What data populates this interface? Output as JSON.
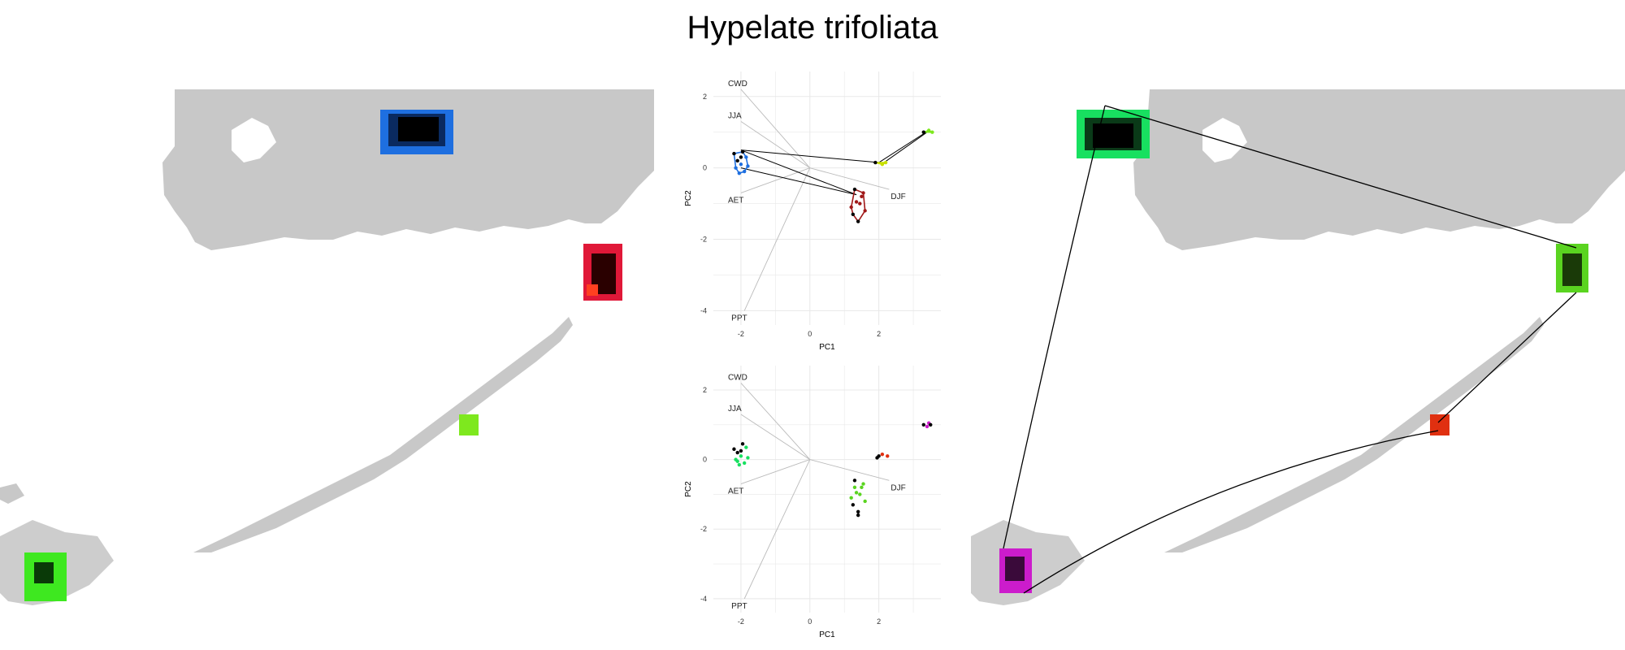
{
  "title": "Hypelate trifoliata",
  "colors": {
    "land": "#c8c8c8",
    "grid": "#e8e8e8",
    "vector": "#bbbbbb",
    "blue": "#1e6fe0",
    "red": "#e01838",
    "lime": "#7ee81e",
    "green": "#18e060",
    "magenta": "#cc1ccc",
    "orange_red": "#e03010"
  },
  "chart_data": [
    {
      "type": "scatter",
      "panel": "pca-top",
      "xlabel": "PC1",
      "ylabel": "PC2",
      "xlim": [
        -2.8,
        3.8
      ],
      "ylim": [
        -4.4,
        2.7
      ],
      "xticks": [
        -2,
        0,
        2
      ],
      "yticks": [
        -4,
        -2,
        0,
        2
      ],
      "grid": true,
      "loadings": [
        {
          "label": "CWD",
          "x": -2.0,
          "y": 2.2
        },
        {
          "label": "JJA",
          "x": -2.0,
          "y": 1.3
        },
        {
          "label": "AET",
          "x": -2.0,
          "y": -0.7
        },
        {
          "label": "DJF",
          "x": 2.3,
          "y": -0.6
        },
        {
          "label": "PPT",
          "x": -1.9,
          "y": -4.0
        }
      ],
      "series": [
        {
          "color": "#1e6fe0",
          "hull": true,
          "points": [
            [
              -2.2,
              0.4
            ],
            [
              -2.0,
              0.1
            ],
            [
              -1.9,
              -0.1
            ],
            [
              -2.1,
              0.2
            ],
            [
              -1.85,
              0.3
            ],
            [
              -2.05,
              -0.15
            ],
            [
              -1.95,
              0.45
            ],
            [
              -2.15,
              0.0
            ],
            [
              -1.8,
              0.05
            ],
            [
              -2.0,
              0.3
            ]
          ]
        },
        {
          "color": "#a01818",
          "hull": true,
          "points": [
            [
              1.3,
              -0.6
            ],
            [
              1.5,
              -0.8
            ],
            [
              1.2,
              -1.1
            ],
            [
              1.4,
              -1.5
            ],
            [
              1.6,
              -1.2
            ],
            [
              1.35,
              -0.95
            ],
            [
              1.25,
              -1.3
            ],
            [
              1.45,
              -1.0
            ],
            [
              1.55,
              -0.7
            ]
          ]
        },
        {
          "color": "#c8e000",
          "hull": true,
          "points": [
            [
              1.9,
              0.15
            ],
            [
              2.1,
              0.1
            ],
            [
              2.2,
              0.15
            ]
          ]
        },
        {
          "color": "#7ee81e",
          "hull": true,
          "points": [
            [
              3.3,
              1.0
            ],
            [
              3.45,
              1.05
            ],
            [
              3.55,
              1.0
            ]
          ]
        }
      ],
      "connections": [
        [
          [
            -2.0,
            0.5
          ],
          [
            2.0,
            0.15
          ]
        ],
        [
          [
            -2.0,
            0.5
          ],
          [
            1.35,
            -0.75
          ]
        ],
        [
          [
            -2.0,
            0.0
          ],
          [
            1.35,
            -0.75
          ]
        ],
        [
          [
            2.0,
            0.15
          ],
          [
            3.45,
            1.05
          ]
        ],
        [
          [
            2.15,
            0.15
          ],
          [
            3.4,
            1.0
          ]
        ]
      ]
    },
    {
      "type": "scatter",
      "panel": "pca-bottom",
      "xlabel": "PC1",
      "ylabel": "PC2",
      "xlim": [
        -2.8,
        3.8
      ],
      "ylim": [
        -4.4,
        2.7
      ],
      "xticks": [
        -2,
        0,
        2
      ],
      "yticks": [
        -4,
        -2,
        0,
        2
      ],
      "grid": true,
      "loadings": [
        {
          "label": "CWD",
          "x": -2.0,
          "y": 2.2
        },
        {
          "label": "JJA",
          "x": -2.0,
          "y": 1.3
        },
        {
          "label": "AET",
          "x": -2.0,
          "y": -0.7
        },
        {
          "label": "DJF",
          "x": 2.3,
          "y": -0.6
        },
        {
          "label": "PPT",
          "x": -1.9,
          "y": -4.0
        }
      ],
      "series": [
        {
          "color": "#18e060",
          "hull": false,
          "points": [
            [
              -2.2,
              0.3
            ],
            [
              -2.0,
              0.1
            ],
            [
              -1.9,
              -0.1
            ],
            [
              -2.1,
              0.2
            ],
            [
              -1.85,
              0.35
            ],
            [
              -2.05,
              -0.15
            ],
            [
              -1.95,
              0.45
            ],
            [
              -2.15,
              0.0
            ],
            [
              -1.8,
              0.05
            ],
            [
              -2.0,
              0.25
            ],
            [
              -2.1,
              -0.05
            ]
          ]
        },
        {
          "color": "#5ad420",
          "hull": false,
          "points": [
            [
              1.3,
              -0.6
            ],
            [
              1.5,
              -0.8
            ],
            [
              1.2,
              -1.1
            ],
            [
              1.4,
              -1.5
            ],
            [
              1.6,
              -1.2
            ],
            [
              1.35,
              -0.95
            ],
            [
              1.25,
              -1.3
            ],
            [
              1.45,
              -1.0
            ],
            [
              1.55,
              -0.7
            ],
            [
              1.4,
              -1.6
            ],
            [
              1.3,
              -0.8
            ]
          ]
        },
        {
          "color": "#e03010",
          "hull": false,
          "points": [
            [
              2.0,
              0.1
            ],
            [
              2.1,
              0.15
            ],
            [
              2.25,
              0.1
            ],
            [
              1.95,
              0.05
            ]
          ]
        },
        {
          "color": "#cc1ccc",
          "hull": false,
          "points": [
            [
              3.3,
              1.0
            ],
            [
              3.45,
              1.05
            ],
            [
              3.4,
              0.95
            ],
            [
              3.5,
              1.0
            ]
          ]
        }
      ]
    }
  ]
}
